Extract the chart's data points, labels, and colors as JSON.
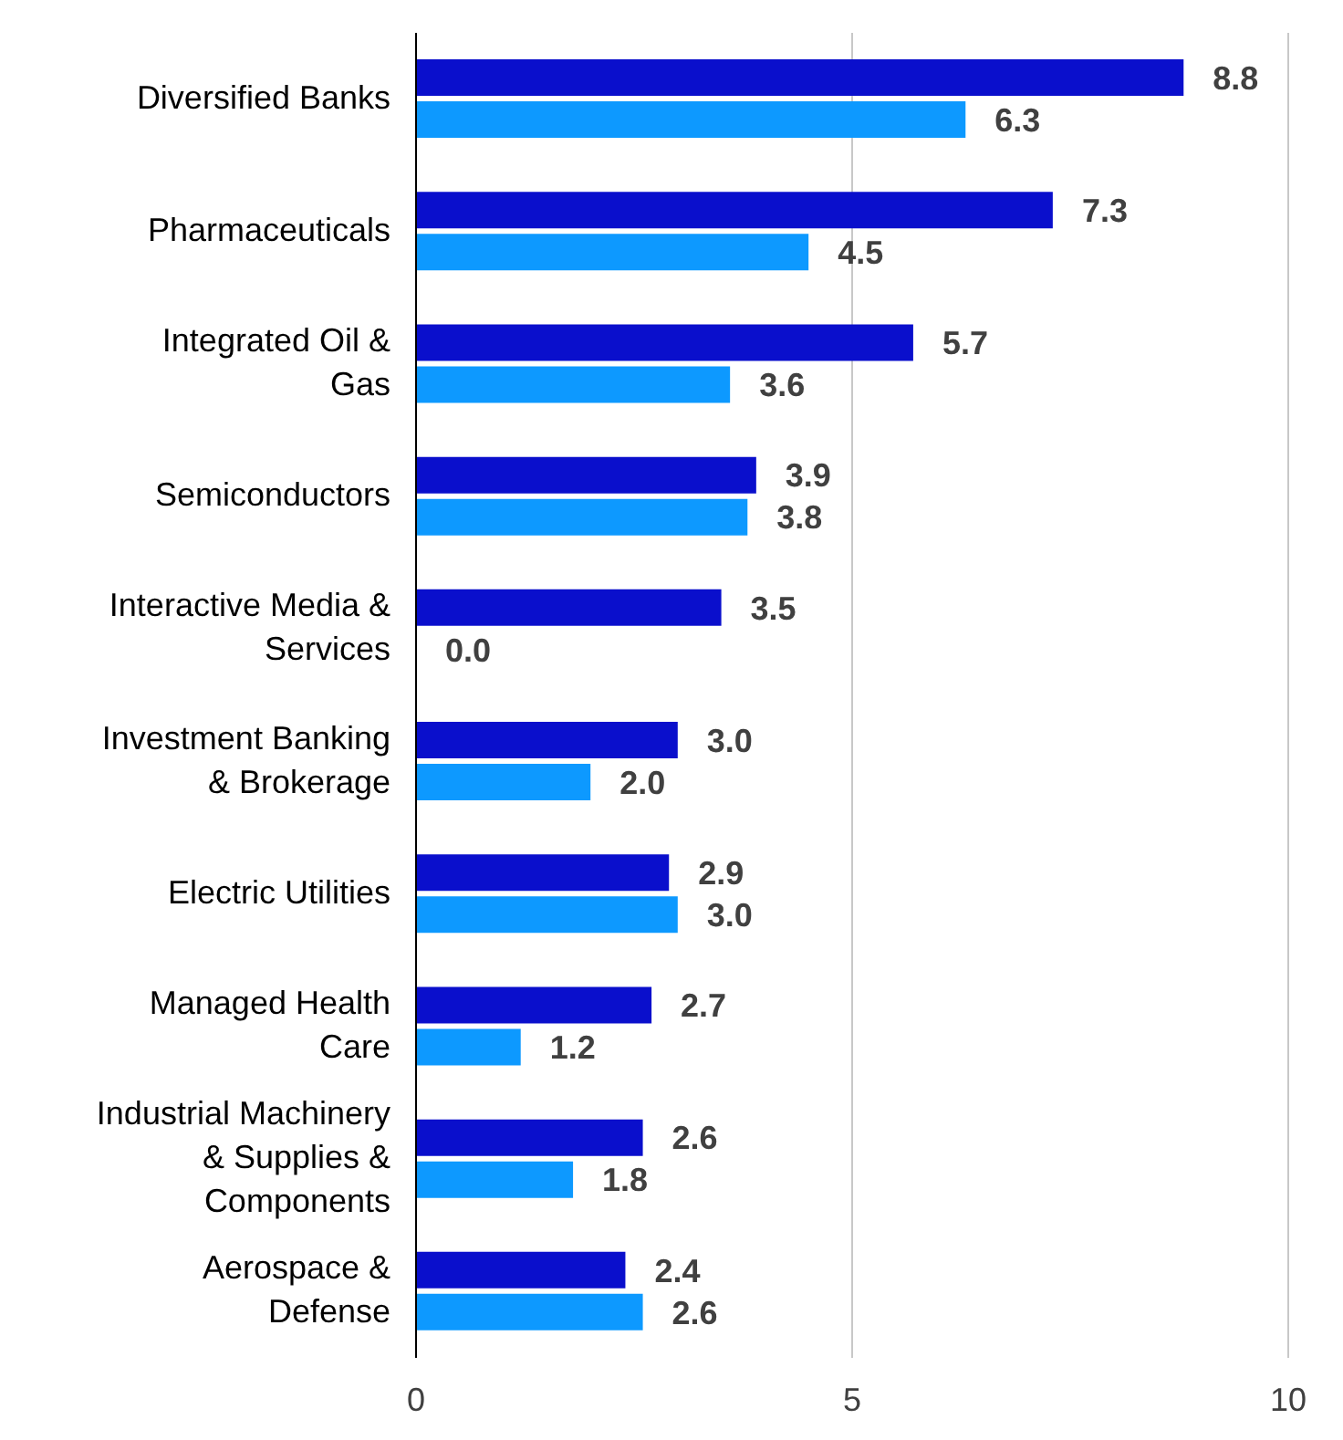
{
  "chart_data": {
    "type": "bar",
    "orientation": "horizontal",
    "categories": [
      "Diversified Banks",
      "Pharmaceuticals",
      "Integrated Oil &\nGas",
      "Semiconductors",
      "Interactive Media &\nServices",
      "Investment Banking\n& Brokerage",
      "Electric Utilities",
      "Managed Health\nCare",
      "Industrial Machinery\n& Supplies &\nComponents",
      "Aerospace &\nDefense"
    ],
    "series": [
      {
        "color": "#0a0fcc",
        "values": [
          8.8,
          7.3,
          5.7,
          3.9,
          3.5,
          3.0,
          2.9,
          2.7,
          2.6,
          2.4
        ],
        "value_labels": [
          "8.8",
          "7.3",
          "5.7",
          "3.9",
          "3.5",
          "3.0",
          "2.9",
          "2.7",
          "2.6",
          "2.4"
        ]
      },
      {
        "color": "#0d99ff",
        "values": [
          6.3,
          4.5,
          3.6,
          3.8,
          0.0,
          2.0,
          3.0,
          1.2,
          1.8,
          2.6
        ],
        "value_labels": [
          "6.3",
          "4.5",
          "3.6",
          "3.8",
          "0.0",
          "2.0",
          "3.0",
          "1.2",
          "1.8",
          "2.6"
        ]
      }
    ],
    "xlim": [
      0,
      10
    ],
    "xticks": [
      0,
      5,
      10
    ],
    "grid": "x",
    "legend": false,
    "data_labels": true
  }
}
